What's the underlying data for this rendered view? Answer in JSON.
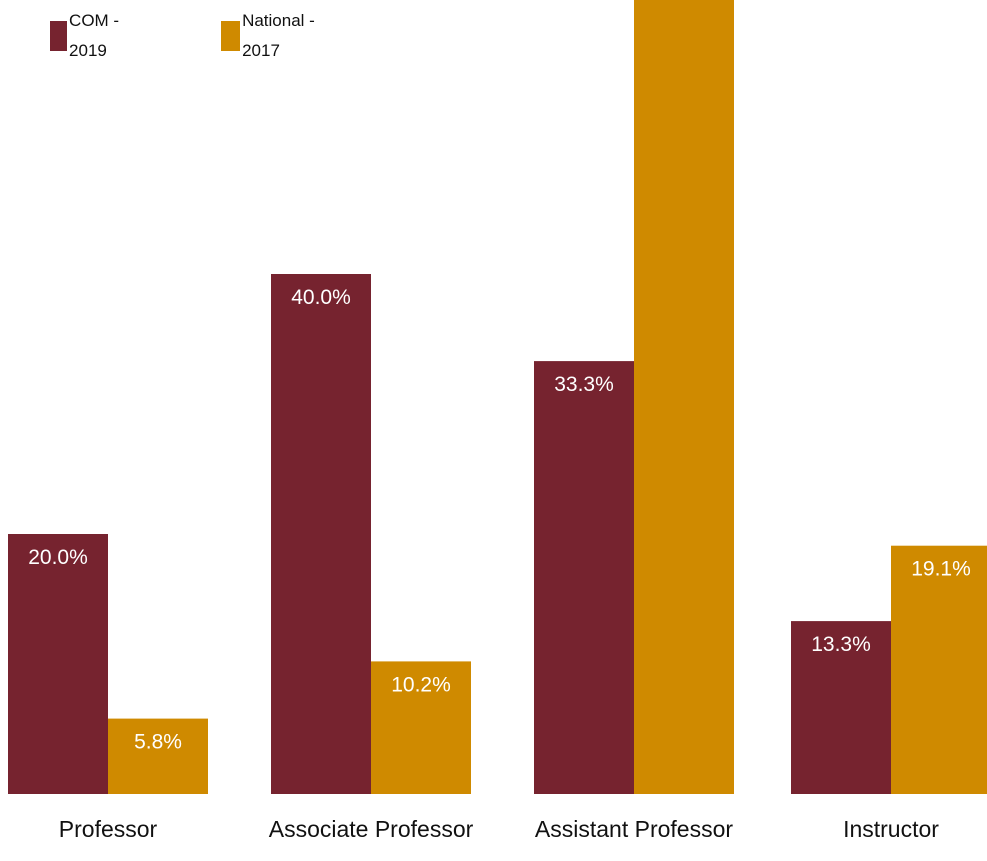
{
  "chart_data": {
    "type": "bar",
    "categories": [
      "Professor",
      "Associate Professor",
      "Assistant Professor",
      "Instructor"
    ],
    "series": [
      {
        "name": "COM - 2019",
        "color": "#76232f",
        "values": [
          20.0,
          40.0,
          33.3,
          13.3
        ],
        "labels": [
          "20.0%",
          "40.0%",
          "33.3%",
          "13.3%"
        ]
      },
      {
        "name": "National - 2017",
        "color": "#cf8a00",
        "values": [
          5.8,
          10.2,
          66.5,
          19.1
        ],
        "labels": [
          "5.8%",
          "10.2%",
          "",
          "19.1%"
        ]
      }
    ],
    "title": "",
    "xlabel": "",
    "ylabel": "",
    "ylim": [
      0,
      64
    ],
    "grid": false,
    "legend": "top-left"
  }
}
